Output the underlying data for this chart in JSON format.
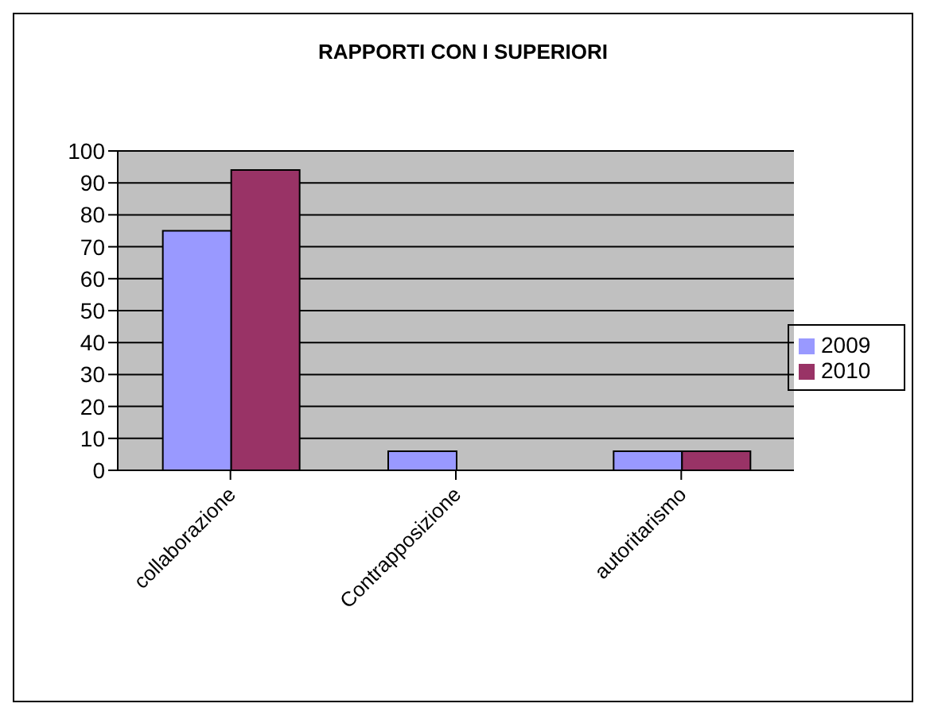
{
  "chart_data": {
    "type": "bar",
    "title": "RAPPORTI CON I SUPERIORI",
    "categories": [
      "collaborazione",
      "Contrapposizione",
      "autoritarismo"
    ],
    "series": [
      {
        "name": "2009",
        "color": "#9999ff",
        "values": [
          75,
          6,
          6
        ]
      },
      {
        "name": "2010",
        "color": "#993366",
        "values": [
          94,
          0,
          6
        ]
      }
    ],
    "ylim": [
      0,
      100
    ],
    "yticks": [
      0,
      10,
      20,
      30,
      40,
      50,
      60,
      70,
      80,
      90,
      100
    ],
    "grid": "y",
    "legend": "right"
  }
}
